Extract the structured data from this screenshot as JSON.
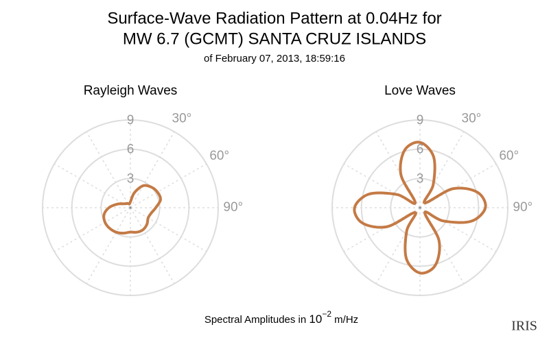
{
  "title": [
    "Surface-Wave Radiation Pattern at 0.04Hz for",
    "MW 6.7 (GCMT) SANTA CRUZ ISLANDS"
  ],
  "subtitle": "of February 07, 2013, 18:59:16",
  "footer": {
    "text": "Spectral Amplitudes in ",
    "base": "10",
    "exponent": "−2",
    "unit": " m/Hz"
  },
  "logo": "IRIS",
  "chart_data": [
    {
      "type": "polar",
      "title": "Rayleigh Waves",
      "color": "#c47a45",
      "theta": [
        0,
        15,
        30,
        45,
        60,
        75,
        90,
        105,
        120,
        135,
        150,
        165,
        180,
        195,
        210,
        225,
        240,
        255,
        270,
        285,
        300,
        315,
        330,
        345
      ],
      "values": [
        0.6,
        1.6,
        2.6,
        3.0,
        3.2,
        3.2,
        2.6,
        2.2,
        2.1,
        2.4,
        2.6,
        2.6,
        2.5,
        2.7,
        2.9,
        3.0,
        3.0,
        2.8,
        2.2,
        1.4,
        0.8,
        0.6,
        0.5,
        0.4
      ],
      "rlim": [
        0,
        9
      ],
      "rticks": [
        3,
        6,
        9
      ],
      "thetagrid": [
        0,
        30,
        60,
        90,
        120,
        150,
        180,
        210,
        240,
        270,
        300,
        330
      ],
      "thetaticks": [
        {
          "value": 30,
          "label": "30°"
        },
        {
          "value": 60,
          "label": "60°"
        },
        {
          "value": 90,
          "label": "90°"
        }
      ],
      "theta_zero": "N",
      "theta_direction": "clockwise"
    },
    {
      "type": "polar",
      "title": "Love Waves",
      "color": "#c47a45",
      "theta": [
        0,
        15,
        30,
        45,
        60,
        75,
        90,
        105,
        120,
        135,
        150,
        165,
        180,
        195,
        210,
        225,
        240,
        255,
        270,
        285,
        300,
        315,
        330,
        345
      ],
      "values": [
        6.7,
        5.4,
        2.7,
        0.7,
        3.9,
        6.1,
        6.7,
        5.4,
        2.7,
        0.7,
        3.9,
        6.1,
        6.7,
        5.4,
        2.7,
        0.7,
        3.9,
        6.1,
        6.7,
        5.4,
        2.7,
        0.7,
        3.9,
        6.1
      ],
      "rlim": [
        0,
        9
      ],
      "rticks": [
        3,
        6,
        9
      ],
      "thetagrid": [
        0,
        30,
        60,
        90,
        120,
        150,
        180,
        210,
        240,
        270,
        300,
        330
      ],
      "thetaticks": [
        {
          "value": 30,
          "label": "30°"
        },
        {
          "value": 60,
          "label": "60°"
        },
        {
          "value": 90,
          "label": "90°"
        }
      ],
      "theta_zero": "N",
      "theta_direction": "clockwise"
    }
  ]
}
